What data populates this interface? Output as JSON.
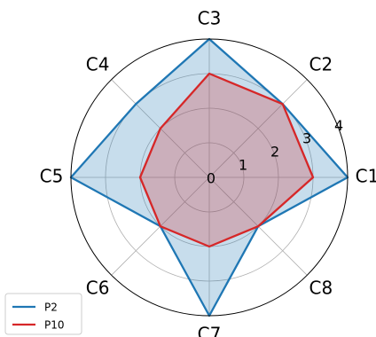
{
  "chart_data": {
    "type": "radar",
    "categories": [
      "C1",
      "C2",
      "C3",
      "C4",
      "C5",
      "C6",
      "C7",
      "C8"
    ],
    "radial_ticks": [
      "0",
      "1",
      "2",
      "3",
      "4"
    ],
    "rlim": [
      0,
      4
    ],
    "grid": true,
    "legend_position": "bottom-left",
    "series": [
      {
        "name": "P2",
        "color": "#1f77b4",
        "fill_color": "#1f77b4",
        "values": [
          4.0,
          3.0,
          4.0,
          3.0,
          4.0,
          2.0,
          4.0,
          2.0
        ]
      },
      {
        "name": "P10",
        "color": "#d62728",
        "fill_color": "#d62728",
        "values": [
          3.0,
          3.0,
          3.0,
          2.0,
          2.0,
          2.0,
          2.0,
          2.0
        ]
      }
    ]
  }
}
